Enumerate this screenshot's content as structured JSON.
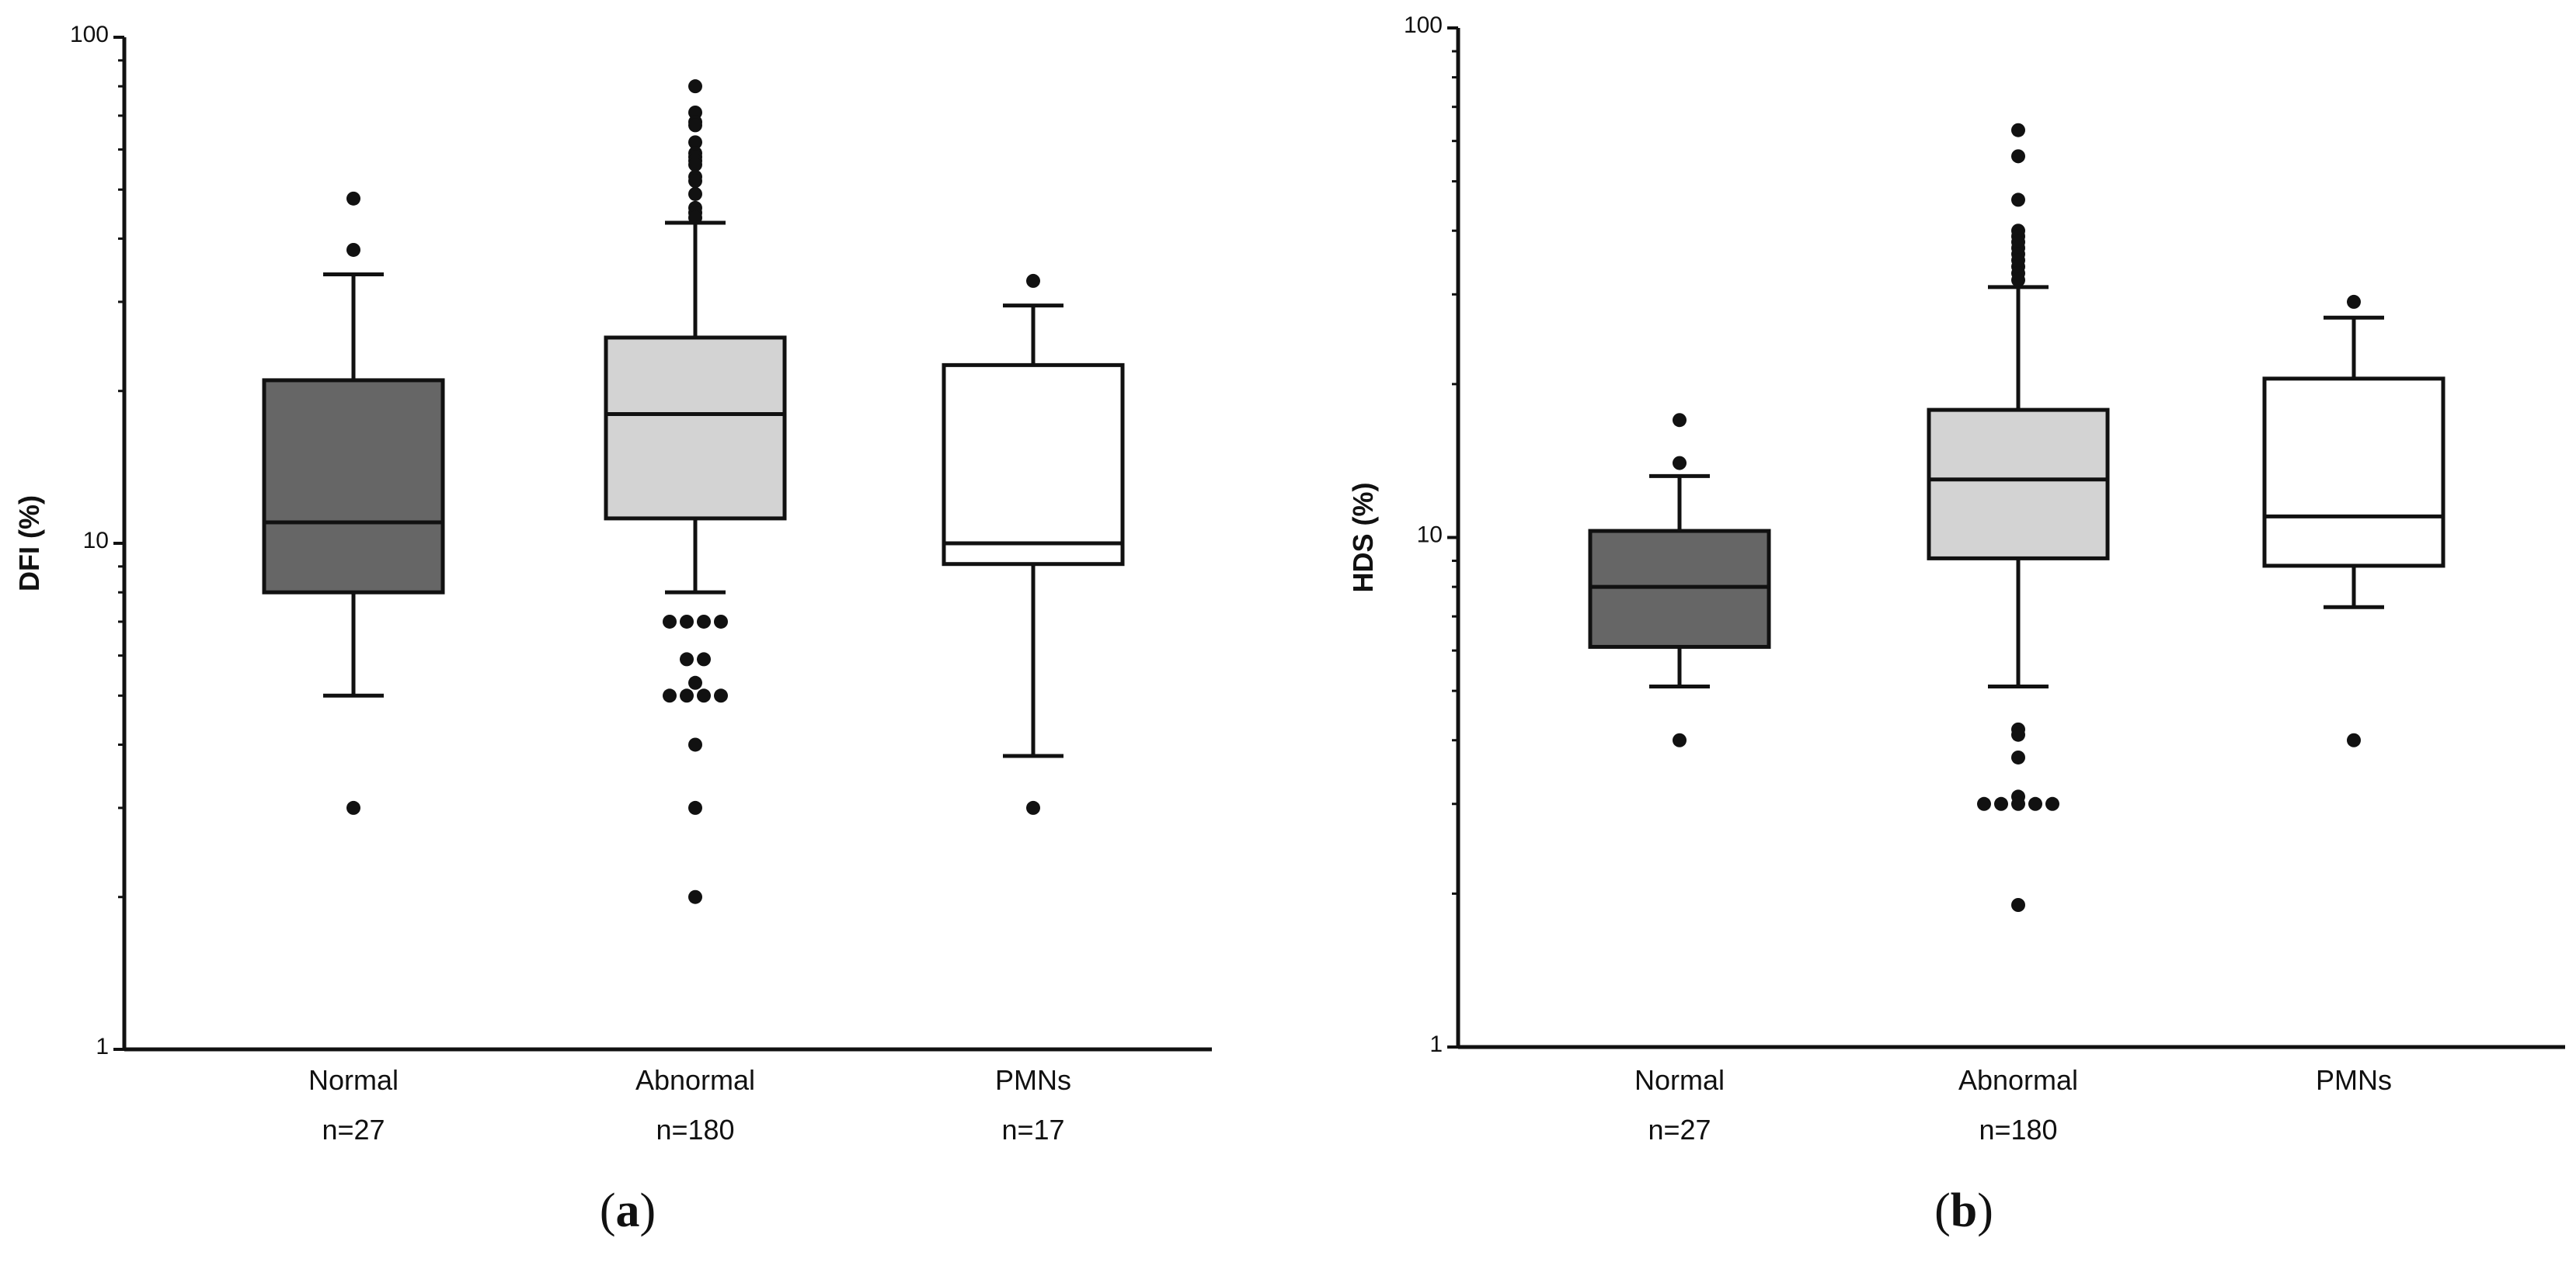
{
  "chart_data": [
    {
      "type": "boxplot",
      "panel_label_prefix": "(",
      "panel_label_letter": "a",
      "panel_label_suffix": ")",
      "ylabel": "DFI (%)",
      "yscale": "log",
      "ylim": [
        1,
        100
      ],
      "yticks": [
        {
          "value": 1,
          "label": "1"
        },
        {
          "value": 10,
          "label": "10"
        },
        {
          "value": 100,
          "label": "100"
        }
      ],
      "groups": [
        {
          "name": "Normal",
          "n_label": "n=27",
          "fill": "#666666",
          "whisker_low": 5,
          "q1": 8,
          "median": 11,
          "q3": 21,
          "whisker_high": 34,
          "outliers": [
            48,
            38,
            3
          ]
        },
        {
          "name": "Abnormal",
          "n_label": "n=180",
          "fill": "#d3d3d3",
          "whisker_low": 8,
          "q1": 11.2,
          "median": 18,
          "q3": 25.5,
          "whisker_high": 43,
          "outliers": [
            80,
            71,
            68,
            67,
            62,
            59,
            58,
            57,
            56,
            53,
            52,
            49,
            46,
            45,
            44,
            7,
            7,
            7,
            7,
            5.9,
            5.9,
            5.3,
            5,
            5,
            5,
            5,
            4,
            3,
            2
          ]
        },
        {
          "name": "PMNs",
          "n_label": "n=17",
          "fill": "#ffffff",
          "whisker_low": 3.8,
          "q1": 9.1,
          "median": 10,
          "q3": 22.5,
          "whisker_high": 29.5,
          "outliers": [
            33,
            3
          ]
        }
      ]
    },
    {
      "type": "boxplot",
      "panel_label_prefix": "(",
      "panel_label_letter": "b",
      "panel_label_suffix": ")",
      "ylabel": "HDS (%)",
      "yscale": "log",
      "ylim": [
        1,
        100
      ],
      "yticks": [
        {
          "value": 1,
          "label": "1"
        },
        {
          "value": 10,
          "label": "10"
        },
        {
          "value": 100,
          "label": "100"
        }
      ],
      "groups": [
        {
          "name": "Normal",
          "n_label": "n=27",
          "fill": "#666666",
          "whisker_low": 5.1,
          "q1": 6.1,
          "median": 8,
          "q3": 10.3,
          "whisker_high": 13.2,
          "outliers": [
            17,
            14,
            4
          ]
        },
        {
          "name": "Abnormal",
          "n_label": "n=180",
          "fill": "#d3d3d3",
          "whisker_low": 5.1,
          "q1": 9.1,
          "median": 13,
          "q3": 17.8,
          "whisker_high": 31,
          "outliers": [
            63,
            56,
            46,
            40,
            39,
            38,
            37,
            36,
            35,
            34,
            33,
            32,
            4.2,
            4.1,
            3.7,
            3.1,
            3,
            3,
            3,
            3,
            3,
            1.9
          ]
        },
        {
          "name": "PMNs",
          "n_label": "",
          "fill": "#ffffff",
          "whisker_low": 7.3,
          "q1": 8.8,
          "median": 11,
          "q3": 20.5,
          "whisker_high": 27,
          "outliers": [
            29,
            4
          ]
        }
      ]
    }
  ]
}
